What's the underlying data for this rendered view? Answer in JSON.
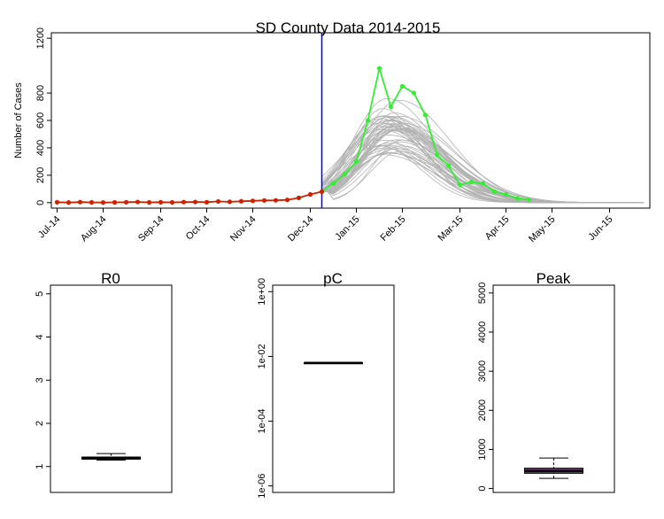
{
  "main_chart": {
    "title": "SD County Data 2014-2015",
    "ylabel": "Number of Cases",
    "yticks": [
      0,
      200,
      400,
      600,
      800,
      1200
    ],
    "ylim": [
      -40,
      1240
    ],
    "xlim": [
      -0.5,
      51.5
    ],
    "xtick_labels": [
      "Jul-14",
      "Aug-14",
      "Sep-14",
      "Oct-14",
      "Nov-14",
      "Dec-14",
      "Jan-15",
      "Feb-15",
      "Mar-15",
      "Apr-15",
      "May-15",
      "Jun-15"
    ],
    "xtick_positions": [
      0,
      4,
      9,
      13,
      17,
      22,
      26,
      30,
      35,
      39,
      43,
      48
    ],
    "vline_x": 23,
    "vline_color": "#0000ff",
    "observed_color": "#cc2200",
    "forecast_color": "#33ee33",
    "sim_color": "#b3b3b3",
    "observed": {
      "x": [
        0,
        1,
        2,
        3,
        4,
        5,
        6,
        7,
        8,
        9,
        10,
        11,
        12,
        13,
        14,
        15,
        16,
        17,
        18,
        19,
        20,
        21,
        22,
        23
      ],
      "y": [
        3,
        1,
        4,
        2,
        1,
        2,
        3,
        5,
        2,
        3,
        2,
        4,
        5,
        3,
        9,
        6,
        10,
        13,
        16,
        17,
        20,
        35,
        60,
        80
      ]
    },
    "forecast": {
      "x": [
        23,
        24,
        25,
        26,
        27,
        28,
        29,
        30,
        31,
        32,
        33,
        34,
        35,
        36,
        37,
        38,
        39,
        40,
        41
      ],
      "y": [
        80,
        140,
        210,
        300,
        600,
        980,
        700,
        850,
        800,
        640,
        350,
        270,
        130,
        150,
        140,
        80,
        60,
        30,
        20
      ]
    },
    "simulations": {
      "start_x": 23,
      "end_x": 51,
      "peak_x_range": [
        28,
        30
      ],
      "peak_y_range": [
        340,
        780
      ],
      "count": 50
    }
  },
  "boxplots": [
    {
      "title": "R0",
      "yticks": [
        "1",
        "2",
        "3",
        "4",
        "5"
      ],
      "ylim": [
        0.4,
        5.2
      ],
      "stats": {
        "min": 1.15,
        "q1": 1.17,
        "median": 1.2,
        "q3": 1.22,
        "max": 1.3
      },
      "fill": "#e0e0e0"
    },
    {
      "title": "pC",
      "yticks": [
        "1e-06",
        "1e-04",
        "1e-02",
        "1e+00"
      ],
      "log_scale": true,
      "ylim_log10": [
        -6.2,
        0.2
      ],
      "stats_log10": {
        "min": -2.2,
        "q1": -2.2,
        "median": -2.2,
        "q3": -2.2,
        "max": -2.2
      },
      "fill": "#e0e0e0"
    },
    {
      "title": "Peak",
      "yticks": [
        "0",
        "1000",
        "2000",
        "3000",
        "4000",
        "5000"
      ],
      "ylim": [
        -100,
        5200
      ],
      "stats": {
        "min": 260,
        "q1": 390,
        "median": 450,
        "q3": 520,
        "max": 780
      },
      "fill": "#9b1fa0"
    }
  ]
}
